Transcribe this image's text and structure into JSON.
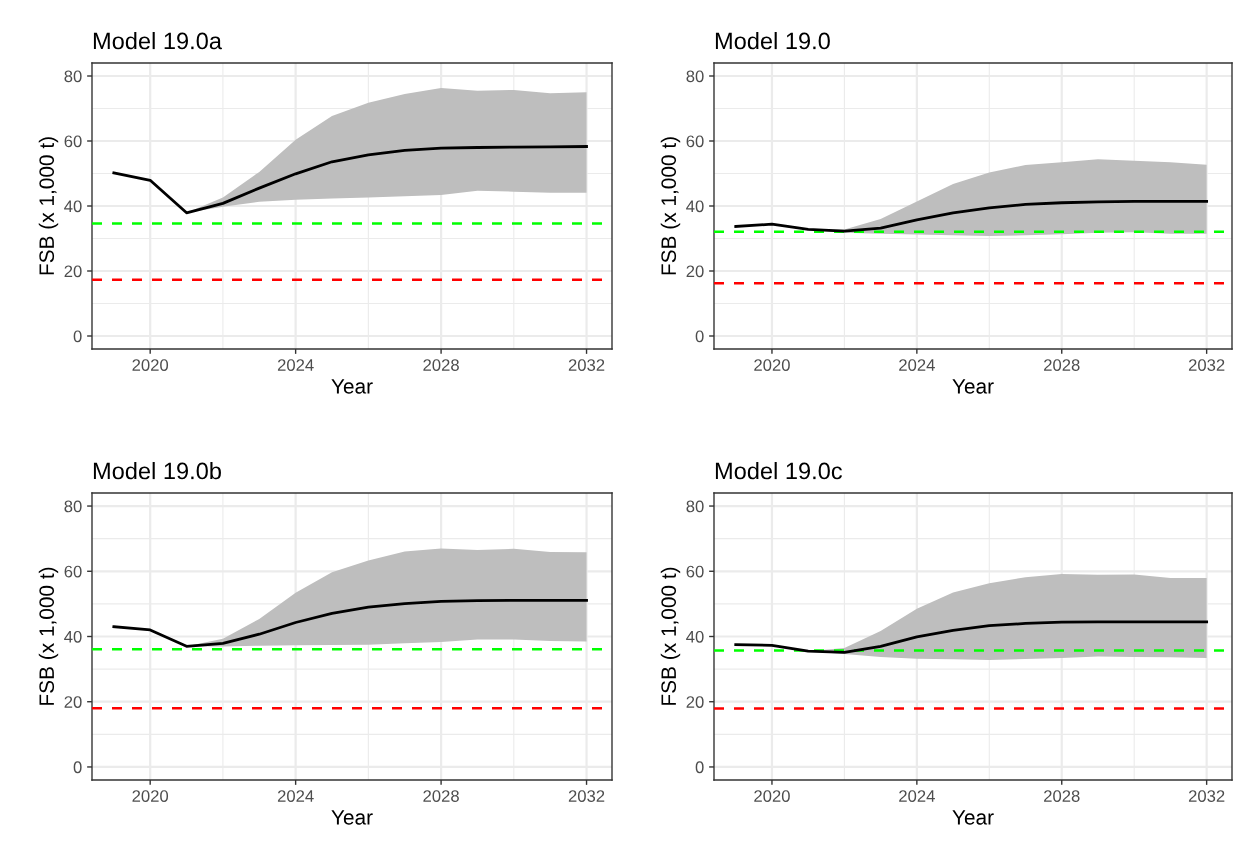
{
  "chart_data": [
    {
      "type": "line",
      "title": "Model 19.0a",
      "xlabel": "Year",
      "ylabel": "FSB (x 1,000 t)",
      "x": [
        2019,
        2020,
        2021,
        2022,
        2023,
        2024,
        2025,
        2026,
        2027,
        2028,
        2029,
        2030,
        2031,
        2032
      ],
      "series": [
        {
          "color": "#000000",
          "values": [
            50.2,
            47.9,
            37.9,
            40.8,
            45.5,
            49.9,
            53.6,
            55.7,
            57.1,
            57.8,
            58,
            58.1,
            58.2,
            58.3
          ],
          "lower": [
            null,
            null,
            37.9,
            39.8,
            41.3,
            41.9,
            42.3,
            42.6,
            43,
            43.4,
            44.7,
            44.4,
            44.1,
            44.1
          ],
          "upper": [
            null,
            null,
            37.9,
            42.6,
            50.5,
            60.4,
            67.7,
            71.8,
            74.5,
            76.3,
            75.5,
            75.7,
            74.7,
            75
          ]
        }
      ],
      "ref_lines": [
        {
          "axis": "y",
          "value": 34.6,
          "color": "#00ff00",
          "line_style": "dashed"
        },
        {
          "axis": "y",
          "value": 17.3,
          "color": "#ff0000",
          "line_style": "dashed"
        }
      ],
      "xlim": [
        2018.4,
        2032.7
      ],
      "ylim": [
        -4,
        84
      ],
      "xticks": [
        2020,
        2024,
        2028,
        2032
      ],
      "yticks": [
        0,
        20,
        40,
        60,
        80
      ],
      "grid": true
    },
    {
      "type": "line",
      "title": "Model 19.0",
      "xlabel": "Year",
      "ylabel": "FSB (x 1,000 t)",
      "x": [
        2019,
        2020,
        2021,
        2022,
        2023,
        2024,
        2025,
        2026,
        2027,
        2028,
        2029,
        2030,
        2031,
        2032
      ],
      "series": [
        {
          "color": "#000000",
          "values": [
            33.7,
            34.4,
            32.8,
            32.3,
            33.2,
            35.7,
            37.9,
            39.4,
            40.5,
            41,
            41.3,
            41.4,
            41.4,
            41.4
          ],
          "lower": [
            null,
            null,
            32.8,
            31.8,
            31.5,
            31.2,
            31,
            30.8,
            31,
            31.3,
            31.8,
            31.9,
            31.5,
            31.5
          ],
          "upper": [
            null,
            null,
            32.8,
            32.8,
            36,
            41.4,
            46.8,
            50.3,
            52.6,
            53.5,
            54.4,
            53.9,
            53.5,
            52.7
          ]
        }
      ],
      "ref_lines": [
        {
          "axis": "y",
          "value": 32.1,
          "color": "#00ff00",
          "line_style": "dashed"
        },
        {
          "axis": "y",
          "value": 16.2,
          "color": "#ff0000",
          "line_style": "dashed"
        }
      ],
      "xlim": [
        2018.4,
        2032.7
      ],
      "ylim": [
        -4,
        84
      ],
      "xticks": [
        2020,
        2024,
        2028,
        2032
      ],
      "yticks": [
        0,
        20,
        40,
        60,
        80
      ],
      "grid": true
    },
    {
      "type": "line",
      "title": "Model 19.0b",
      "xlabel": "Year",
      "ylabel": "FSB (x 1,000 t)",
      "x": [
        2019,
        2020,
        2021,
        2022,
        2023,
        2024,
        2025,
        2026,
        2027,
        2028,
        2029,
        2030,
        2031,
        2032
      ],
      "series": [
        {
          "color": "#000000",
          "values": [
            43,
            42,
            37,
            37.9,
            40.7,
            44.3,
            47.1,
            49,
            50.1,
            50.8,
            51,
            51.1,
            51.1,
            51.1
          ],
          "lower": [
            null,
            null,
            37,
            36.9,
            37.2,
            37.3,
            37.4,
            37.5,
            37.9,
            38.3,
            39.1,
            39.1,
            38.6,
            38.5
          ],
          "upper": [
            null,
            null,
            37,
            39.3,
            45.4,
            53.4,
            59.7,
            63.3,
            66.1,
            67,
            66.5,
            66.9,
            65.9,
            65.8
          ]
        }
      ],
      "ref_lines": [
        {
          "axis": "y",
          "value": 36.1,
          "color": "#00ff00",
          "line_style": "dashed"
        },
        {
          "axis": "y",
          "value": 18,
          "color": "#ff0000",
          "line_style": "dashed"
        }
      ],
      "xlim": [
        2018.4,
        2032.7
      ],
      "ylim": [
        -4,
        84
      ],
      "xticks": [
        2020,
        2024,
        2028,
        2032
      ],
      "yticks": [
        0,
        20,
        40,
        60,
        80
      ],
      "grid": true
    },
    {
      "type": "line",
      "title": "Model 19.0c",
      "xlabel": "Year",
      "ylabel": "FSB (x 1,000 t)",
      "x": [
        2019,
        2020,
        2021,
        2022,
        2023,
        2024,
        2025,
        2026,
        2027,
        2028,
        2029,
        2030,
        2031,
        2032
      ],
      "series": [
        {
          "color": "#000000",
          "values": [
            37.5,
            37.3,
            35.5,
            35.1,
            37,
            39.9,
            41.9,
            43.3,
            44,
            44.4,
            44.5,
            44.5,
            44.5,
            44.5
          ],
          "lower": [
            null,
            null,
            35.5,
            34.6,
            33.7,
            33.2,
            33,
            32.8,
            33.1,
            33.4,
            33.9,
            33.7,
            33.6,
            33.4
          ],
          "upper": [
            null,
            null,
            35.5,
            36.5,
            41.7,
            48.5,
            53.5,
            56.3,
            58.2,
            59.2,
            58.9,
            59,
            57.9,
            57.9
          ]
        }
      ],
      "ref_lines": [
        {
          "axis": "y",
          "value": 35.7,
          "color": "#00ff00",
          "line_style": "dashed"
        },
        {
          "axis": "y",
          "value": 17.9,
          "color": "#ff0000",
          "line_style": "dashed"
        }
      ],
      "xlim": [
        2018.4,
        2032.7
      ],
      "ylim": [
        -4,
        84
      ],
      "xticks": [
        2020,
        2024,
        2028,
        2032
      ],
      "yticks": [
        0,
        20,
        40,
        60,
        80
      ],
      "grid": true
    }
  ]
}
